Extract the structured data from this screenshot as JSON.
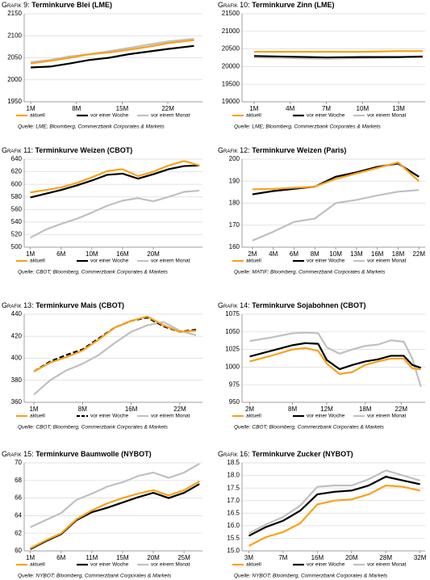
{
  "chart_data": [
    {
      "type": "line",
      "label": "Grafik 9:",
      "title": "Terminkurve Blei (LME)",
      "source": "Quelle: LME; Bloomberg, Commerzbank Corporates & Markets",
      "x": [
        1,
        4,
        7,
        10,
        13,
        16,
        19,
        22,
        26
      ],
      "xlim": [
        0,
        27.3
      ],
      "xticks": [
        {
          "value": 1,
          "label": "1M"
        },
        {
          "value": 8,
          "label": "8M"
        },
        {
          "value": 15,
          "label": "15M"
        },
        {
          "value": 22,
          "label": "22M"
        }
      ],
      "ylim": [
        1950,
        2150
      ],
      "yticks": [
        1950,
        2000,
        2050,
        2100,
        2150
      ],
      "grid": true,
      "series": [
        {
          "name": "aktuell",
          "color": "#f7a21b",
          "values": [
            2037,
            2043,
            2050,
            2058,
            2062,
            2068,
            2075,
            2083,
            2090
          ]
        },
        {
          "name": "vor einer Woche",
          "color": "#000000",
          "values": [
            2028,
            2030,
            2037,
            2045,
            2050,
            2058,
            2064,
            2070,
            2077
          ]
        },
        {
          "name": "vor einem Monat",
          "color": "#c0c0c0",
          "values": [
            2040,
            2045,
            2053,
            2058,
            2065,
            2072,
            2080,
            2087,
            2093
          ]
        }
      ]
    },
    {
      "type": "line",
      "label": "Grafik 10:",
      "title": "Terminkurve Zinn (LME)",
      "source": "Quelle: LME; Bloomberg, Commerzbank Corporates & Markets",
      "x": [
        1,
        4,
        7,
        10,
        13,
        15
      ],
      "xlim": [
        0,
        15.2
      ],
      "xticks": [
        {
          "value": 1,
          "label": "1M"
        },
        {
          "value": 4,
          "label": "4M"
        },
        {
          "value": 7,
          "label": "7M"
        },
        {
          "value": 10,
          "label": "10M"
        },
        {
          "value": 13,
          "label": "13M"
        }
      ],
      "ylim": [
        19000,
        21500
      ],
      "yticks": [
        19000,
        19500,
        20000,
        20500,
        21000,
        21500
      ],
      "grid": true,
      "series": [
        {
          "name": "aktuell",
          "color": "#f7a21b",
          "values": [
            20420,
            20420,
            20420,
            20420,
            20440,
            20440
          ]
        },
        {
          "name": "vor einer Woche",
          "color": "#000000",
          "values": [
            20300,
            20280,
            20260,
            20270,
            20270,
            20280
          ]
        },
        {
          "name": "vor einem Monat",
          "color": "#c0c0c0",
          "values": [
            20260,
            20240,
            20220,
            20240,
            20260,
            20300
          ]
        }
      ]
    },
    {
      "type": "line",
      "label": "Grafik 11:",
      "title": "Terminkurve Weizen (CBOT)",
      "source": "Quelle: CBOT; Bloomberg, Commerzbank Corporates & Markets",
      "x": [
        0,
        1,
        2,
        3,
        4,
        5,
        6,
        7,
        8,
        9,
        10,
        11
      ],
      "xlim": [
        -0.4,
        11.2
      ],
      "xticks": [
        {
          "value": 0,
          "label": "1M"
        },
        {
          "value": 2,
          "label": "6M"
        },
        {
          "value": 4,
          "label": "10M"
        },
        {
          "value": 6,
          "label": "16M"
        },
        {
          "value": 8,
          "label": "20M"
        }
      ],
      "ylim": [
        500,
        640
      ],
      "yticks": [
        500,
        520,
        540,
        560,
        580,
        600,
        620,
        640
      ],
      "grid": true,
      "series": [
        {
          "name": "aktuell",
          "color": "#f7a21b",
          "values": [
            587,
            591,
            595,
            602,
            611,
            621,
            624,
            613,
            620,
            630,
            637,
            630
          ]
        },
        {
          "name": "vor einer Woche",
          "color": "#000000",
          "values": [
            579,
            585,
            591,
            598,
            606,
            615,
            617,
            609,
            616,
            624,
            629,
            630
          ]
        },
        {
          "name": "vor einem Monat",
          "color": "#c0c0c0",
          "values": [
            515,
            528,
            537,
            545,
            555,
            566,
            574,
            578,
            573,
            580,
            588,
            590
          ]
        }
      ]
    },
    {
      "type": "line",
      "label": "Grafik 12:",
      "title": "Terminkurve Weizen (Paris)",
      "source": "Quelle: MATIF; Bloomberg, Commerzbank Corporates & Markets",
      "x": [
        0,
        1,
        2,
        3,
        4,
        5,
        6,
        7,
        8
      ],
      "xlim": [
        -0.5,
        8.3
      ],
      "xticks": [
        {
          "value": 0,
          "label": "2M"
        },
        {
          "value": 1,
          "label": "4M"
        },
        {
          "value": 2,
          "label": "6M"
        },
        {
          "value": 3,
          "label": "8M"
        },
        {
          "value": 4,
          "label": "10M"
        },
        {
          "value": 5,
          "label": "13M"
        },
        {
          "value": 6,
          "label": "16M"
        },
        {
          "value": 7,
          "label": "18M"
        },
        {
          "value": 8,
          "label": "22M"
        }
      ],
      "ylim": [
        160,
        200
      ],
      "yticks": [
        160,
        170,
        180,
        190,
        200
      ],
      "grid": true,
      "series": [
        {
          "name": "aktuell",
          "color": "#f7a21b",
          "values": [
            186.3,
            186.5,
            187,
            187.5,
            191,
            193.5,
            196,
            198.5,
            190
          ]
        },
        {
          "name": "vor einer Woche",
          "color": "#000000",
          "values": [
            184,
            185.5,
            186.5,
            187.5,
            192,
            194,
            196.5,
            198,
            192
          ]
        },
        {
          "name": "vor einem Monat",
          "color": "#c0c0c0",
          "values": [
            163,
            167,
            171.5,
            173,
            180,
            181.5,
            183.5,
            185.2,
            186
          ]
        }
      ]
    },
    {
      "type": "line",
      "label": "Grafik 13:",
      "title": "Terminkurve Mais (CBOT)",
      "source": "Quelle: CBOT; Bloomberg, Commerzbank Corporates & Markets",
      "x": [
        0,
        1,
        2,
        3,
        4,
        5,
        6,
        7,
        8,
        9,
        10
      ],
      "xlim": [
        -0.6,
        10.4
      ],
      "xticks": [
        {
          "value": 0,
          "label": "1M"
        },
        {
          "value": 3,
          "label": "8M"
        },
        {
          "value": 6,
          "label": "16M"
        },
        {
          "value": 9,
          "label": "22M"
        }
      ],
      "ylim": [
        360,
        440
      ],
      "yticks": [
        360,
        380,
        400,
        420,
        440
      ],
      "grid": true,
      "series": [
        {
          "name": "aktuell",
          "color": "#f7a21b",
          "values": [
            388,
            396,
            401,
            407,
            417,
            428,
            434,
            438,
            430,
            424,
            425
          ]
        },
        {
          "name": "vor einer Woche",
          "color": "#000000",
          "dashed": true,
          "values": [
            388,
            397,
            403,
            408,
            418,
            428,
            434,
            437,
            429,
            424,
            426
          ]
        },
        {
          "name": "vor einem Monat",
          "color": "#c0c0c0",
          "values": [
            367,
            380,
            389,
            395,
            403,
            414,
            424,
            430,
            433,
            425,
            421
          ]
        }
      ]
    },
    {
      "type": "line",
      "label": "Grafik 14:",
      "title": "Terminkurve Sojabohnen (CBOT)",
      "source": "Quelle: CBOT; Bloomberg, Commerzbank Corporates & Markets",
      "x": [
        0,
        2.5,
        5,
        6.5,
        8,
        9,
        10.5,
        12,
        13.5,
        15,
        16.5,
        18,
        19,
        20
      ],
      "xlim": [
        -0.9,
        20.5
      ],
      "xticks": [
        {
          "value": 0,
          "label": "2M"
        },
        {
          "value": 5,
          "label": "8M"
        },
        {
          "value": 9,
          "label": "12M"
        },
        {
          "value": 13.5,
          "label": "18M"
        },
        {
          "value": 17.7,
          "label": "22M"
        }
      ],
      "ylim": [
        950,
        1075
      ],
      "yticks": [
        950,
        975,
        1000,
        1025,
        1050,
        1075
      ],
      "grid": true,
      "series": [
        {
          "name": "aktuell",
          "color": "#f7a21b",
          "values": [
            1008,
            1016,
            1025,
            1027,
            1023,
            1005,
            990,
            993,
            1003,
            1008,
            1012,
            1012,
            998,
            997
          ]
        },
        {
          "name": "vor einer Woche",
          "color": "#000000",
          "values": [
            1015,
            1023,
            1031,
            1034,
            1033,
            1010,
            997,
            1003,
            1008,
            1011,
            1016,
            1016,
            1003,
            999
          ]
        },
        {
          "name": "vor einem Monat",
          "color": "#c0c0c0",
          "values": [
            1037,
            1042,
            1048,
            1049,
            1048,
            1028,
            1019,
            1025,
            1030,
            1032,
            1038,
            1036,
            1012,
            972
          ]
        }
      ]
    },
    {
      "type": "line",
      "label": "Grafik 15:",
      "title": "Terminkurve Baumwolle (NYBOT)",
      "source": "Quelle: NYBOT; Bloomberg, Commerzbank Corporates & Markets",
      "x": [
        0,
        1,
        2,
        3,
        4,
        5,
        6,
        7,
        8,
        9,
        10,
        11
      ],
      "xlim": [
        -0.4,
        11.2
      ],
      "xticks": [
        {
          "value": 0,
          "label": "1M"
        },
        {
          "value": 2,
          "label": "6M"
        },
        {
          "value": 4,
          "label": "11M"
        },
        {
          "value": 6,
          "label": "15M"
        },
        {
          "value": 8,
          "label": "20M"
        },
        {
          "value": 10,
          "label": "25M"
        }
      ],
      "ylim": [
        60,
        70
      ],
      "yticks": [
        60,
        62,
        64,
        66,
        68,
        70
      ],
      "grid": true,
      "series": [
        {
          "name": "aktuell",
          "color": "#f7a21b",
          "values": [
            60.3,
            61.2,
            62.0,
            63.6,
            64.6,
            65.4,
            66.0,
            66.5,
            66.9,
            66.3,
            66.9,
            67.9
          ]
        },
        {
          "name": "vor einer Woche",
          "color": "#000000",
          "values": [
            60.2,
            61.1,
            61.9,
            63.5,
            64.4,
            64.9,
            65.5,
            66.1,
            66.6,
            66.0,
            66.6,
            67.6
          ]
        },
        {
          "name": "vor einem Monat",
          "color": "#c0c0c0",
          "values": [
            62.7,
            63.5,
            64.3,
            65.8,
            66.5,
            67.3,
            67.8,
            68.5,
            68.9,
            68.3,
            68.9,
            69.9
          ]
        }
      ]
    },
    {
      "type": "line",
      "label": "Grafik 16:",
      "title": "Terminkurve Zucker (NYBOT)",
      "source": "Quelle: NYBOT; Bloomberg, Commerzbank Corporates & Markets",
      "x": [
        0,
        1,
        2,
        3,
        4,
        5,
        6,
        7,
        8,
        9,
        10
      ],
      "xlim": [
        -0.4,
        10.3
      ],
      "xticks": [
        {
          "value": 0,
          "label": "3M"
        },
        {
          "value": 2,
          "label": "7M"
        },
        {
          "value": 4,
          "label": "16M"
        },
        {
          "value": 6,
          "label": "20M"
        },
        {
          "value": 8,
          "label": "28M"
        },
        {
          "value": 10,
          "label": "32M"
        }
      ],
      "ylim": [
        15,
        18.5
      ],
      "yticks": [
        {
          "value": 15,
          "label": "15.0"
        },
        15.5,
        {
          "value": 16,
          "label": "16.0"
        },
        16.5,
        {
          "value": 17,
          "label": "17.0"
        },
        17.5,
        {
          "value": 18,
          "label": "18.0"
        },
        18.5
      ],
      "grid": true,
      "series": [
        {
          "name": "aktuell",
          "color": "#f7a21b",
          "values": [
            15.2,
            15.55,
            15.75,
            16.1,
            16.85,
            17.0,
            17.05,
            17.25,
            17.6,
            17.55,
            17.4
          ]
        },
        {
          "name": "vor einer Woche",
          "color": "#000000",
          "values": [
            15.6,
            15.95,
            16.2,
            16.6,
            17.25,
            17.35,
            17.4,
            17.6,
            17.95,
            17.8,
            17.65
          ]
        },
        {
          "name": "vor einem Monat",
          "color": "#c0c0c0",
          "values": [
            15.7,
            16.05,
            16.35,
            16.8,
            17.55,
            17.6,
            17.6,
            17.85,
            18.2,
            18.0,
            17.8
          ]
        }
      ]
    }
  ]
}
